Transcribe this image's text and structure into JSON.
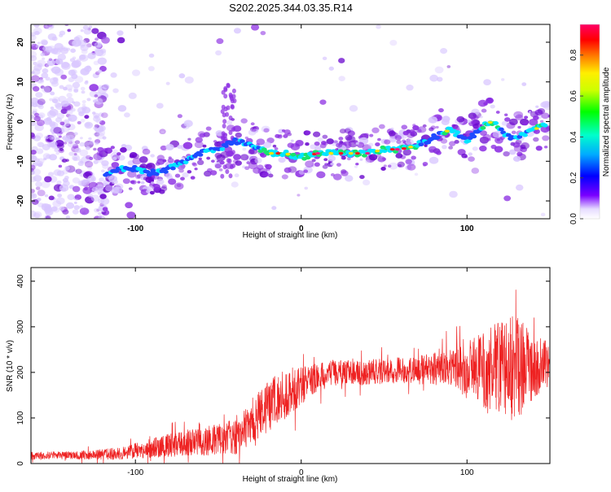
{
  "title": "S202.2025.344.03.35.R14",
  "colors": {
    "line_red": "#ee2222",
    "blob_light": "#d8c6ff",
    "blob_violet": "#8a2be2",
    "blob_deep": "#6600cc",
    "track_blue": "#1e4bff",
    "track_cyan": "#00e5ff",
    "track_green": "#19e36b",
    "track_yellow": "#f5e500",
    "track_red": "#ff1a1a",
    "track_magenta": "#ff1a88"
  },
  "chart_data": [
    {
      "type": "heatmap",
      "xlabel": "Height of straight line (km)",
      "ylabel": "Frequency (Hz)",
      "xlim": [
        -163,
        150
      ],
      "ylim": [
        -24.5,
        24.5
      ],
      "xticks": [
        -100,
        0,
        100
      ],
      "yticks": [
        20,
        10,
        0,
        -10,
        -20
      ],
      "ytick_labels": [
        "20",
        "10",
        "0",
        "-10",
        "-20"
      ],
      "ridge_x": [
        -118,
        -110,
        -100,
        -90,
        -80,
        -70,
        -60,
        -50,
        -40,
        -30,
        -20,
        -10,
        0,
        10,
        20,
        30,
        40,
        50,
        60,
        70,
        80,
        90,
        100,
        110,
        115,
        120,
        125,
        130,
        135,
        140,
        148
      ],
      "ridge_freq": [
        -13,
        -12,
        -12,
        -13,
        -12,
        -10,
        -8,
        -7,
        -5,
        -6,
        -8,
        -8,
        -9,
        -8,
        -8,
        -8,
        -8,
        -7,
        -7,
        -6,
        -4,
        -2,
        -5,
        -1,
        0,
        -2,
        -4,
        -4,
        -3,
        -2,
        -1
      ],
      "colorbar": {
        "label": "Normalized spectral amplitude",
        "range": [
          0.0,
          0.95
        ],
        "ticks": [
          0.0,
          0.2,
          0.4,
          0.6,
          0.8
        ],
        "tick_labels": [
          "0.0",
          "0.2",
          "0.4",
          "0.6",
          "0.8"
        ]
      }
    },
    {
      "type": "line",
      "xlabel": "Height of straight line (km)",
      "ylabel": "SNR (10 * v/v)",
      "xlim": [
        -163,
        150
      ],
      "ylim": [
        0,
        430
      ],
      "xticks": [
        -100,
        0,
        100
      ],
      "yticks": [
        0,
        100,
        200,
        300,
        400
      ],
      "series": [
        {
          "name": "SNR",
          "x": [
            -163,
            -150,
            -140,
            -130,
            -120,
            -110,
            -100,
            -90,
            -80,
            -70,
            -60,
            -50,
            -40,
            -35,
            -30,
            -25,
            -20,
            -15,
            -10,
            -5,
            0,
            5,
            10,
            15,
            20,
            30,
            40,
            50,
            60,
            70,
            80,
            90,
            100,
            110,
            120,
            130,
            140,
            150
          ],
          "mean": [
            17,
            18,
            18,
            19,
            20,
            22,
            28,
            34,
            40,
            45,
            48,
            52,
            58,
            70,
            95,
            110,
            125,
            140,
            150,
            160,
            170,
            180,
            190,
            195,
            198,
            200,
            200,
            203,
            205,
            205,
            208,
            210,
            205,
            205,
            210,
            210,
            212,
            220
          ],
          "noise": [
            6,
            6,
            6,
            7,
            8,
            10,
            12,
            15,
            18,
            20,
            22,
            25,
            28,
            32,
            35,
            38,
            40,
            42,
            40,
            35,
            30,
            25,
            22,
            22,
            20,
            20,
            20,
            20,
            20,
            22,
            25,
            30,
            45,
            60,
            75,
            85,
            50,
            35
          ]
        }
      ]
    }
  ]
}
